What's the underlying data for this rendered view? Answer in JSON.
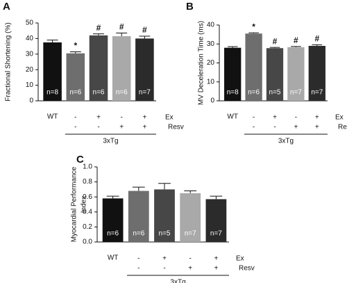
{
  "chart_data": [
    {
      "type": "bar",
      "panel": "A",
      "ylabel": [
        "Fractional Shortening (%)"
      ],
      "categories": [
        "WT",
        null,
        null,
        null,
        null
      ],
      "values": [
        37.5,
        30.5,
        42,
        41.5,
        40
      ],
      "errors": [
        1.5,
        1,
        1,
        2,
        1.5
      ],
      "colors": [
        "#111111",
        "#6e6e6e",
        "#474747",
        "#a9a9a9",
        "#2b2b2b"
      ],
      "markers": [
        null,
        "*",
        "#",
        "#",
        "#"
      ],
      "n_labels": [
        "n=8",
        "n=6",
        "n=6",
        "n=6",
        "n=7"
      ],
      "factor_rows": [
        {
          "name": "Ex",
          "values": [
            null,
            "-",
            "+",
            "-",
            "+"
          ]
        },
        {
          "name": "Resv",
          "values": [
            null,
            "-",
            "-",
            "+",
            "+"
          ]
        }
      ],
      "group_label": "3xTg",
      "ylim": [
        0,
        50
      ],
      "yticks": [
        0,
        10,
        20,
        30,
        40,
        50
      ]
    },
    {
      "type": "bar",
      "panel": "B",
      "ylabel": [
        "MV Deceleration Time (ms)"
      ],
      "categories": [
        "WT",
        null,
        null,
        null,
        null
      ],
      "values": [
        28,
        35.5,
        27.8,
        28.3,
        29
      ],
      "errors": [
        0.6,
        0.4,
        0.4,
        0.4,
        0.6
      ],
      "colors": [
        "#111111",
        "#6e6e6e",
        "#474747",
        "#a9a9a9",
        "#2b2b2b"
      ],
      "markers": [
        null,
        "*",
        "#",
        "#",
        "#"
      ],
      "n_labels": [
        "n=8",
        "n=6",
        "n=5",
        "n=7",
        "n=7"
      ],
      "factor_rows": [
        {
          "name": "Ex",
          "values": [
            null,
            "-",
            "+",
            "-",
            "+"
          ]
        },
        {
          "name": "Resv",
          "values": [
            null,
            "-",
            "-",
            "+",
            "+"
          ]
        }
      ],
      "group_label": "3xTg",
      "ylim": [
        0,
        40
      ],
      "yticks": [
        0,
        10,
        20,
        30,
        40
      ]
    },
    {
      "type": "bar",
      "panel": "C",
      "ylabel": [
        "Myocardial Performance",
        "Index"
      ],
      "categories": [
        "WT",
        null,
        null,
        null,
        null
      ],
      "values": [
        0.58,
        0.68,
        0.7,
        0.65,
        0.57
      ],
      "errors": [
        0.03,
        0.05,
        0.08,
        0.03,
        0.04
      ],
      "colors": [
        "#111111",
        "#6e6e6e",
        "#474747",
        "#a9a9a9",
        "#2b2b2b"
      ],
      "markers": [
        null,
        null,
        null,
        null,
        null
      ],
      "n_labels": [
        "n=6",
        "n=6",
        "n=5",
        "n=7",
        "n=7"
      ],
      "factor_rows": [
        {
          "name": "Ex",
          "values": [
            null,
            "-",
            "+",
            "-",
            "+"
          ]
        },
        {
          "name": "Resv",
          "values": [
            null,
            "-",
            "-",
            "+",
            "+"
          ]
        }
      ],
      "group_label": "3xTg",
      "ylim": [
        0,
        1
      ],
      "yticks": [
        {
          "value": 0,
          "label": "0.0"
        },
        0.2,
        0.4,
        0.6,
        0.8,
        {
          "value": 1,
          "label": "1.0"
        }
      ]
    }
  ]
}
